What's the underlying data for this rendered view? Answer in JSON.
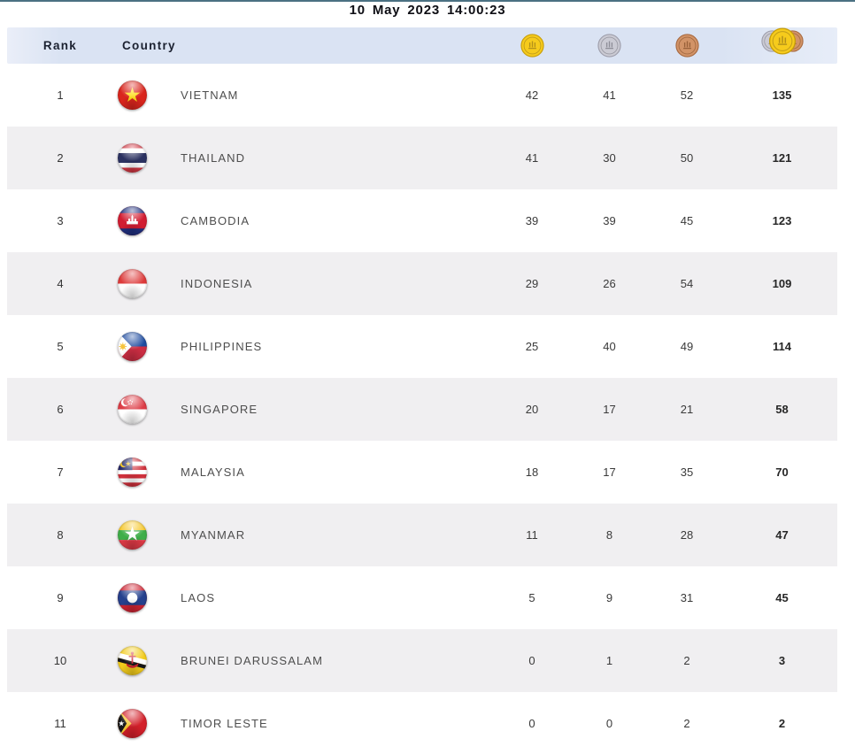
{
  "page": {
    "timestamp": "10 May 2023  14:00:23"
  },
  "table_header": {
    "rank": "Rank",
    "country": "Country",
    "gold_icon": "gold-medal-icon",
    "silver_icon": "silver-medal-icon",
    "bronze_icon": "bronze-medal-icon",
    "total_icon": "total-medals-icon"
  },
  "chart_data": {
    "type": "table",
    "columns": [
      "Rank",
      "Country",
      "Gold",
      "Silver",
      "Bronze",
      "Total"
    ],
    "rows": [
      {
        "rank": 1,
        "country": "VIETNAM",
        "flag": "vietnam",
        "gold": 42,
        "silver": 41,
        "bronze": 52,
        "total": 135
      },
      {
        "rank": 2,
        "country": "THAILAND",
        "flag": "thailand",
        "gold": 41,
        "silver": 30,
        "bronze": 50,
        "total": 121
      },
      {
        "rank": 3,
        "country": "CAMBODIA",
        "flag": "cambodia",
        "gold": 39,
        "silver": 39,
        "bronze": 45,
        "total": 123
      },
      {
        "rank": 4,
        "country": "INDONESIA",
        "flag": "indonesia",
        "gold": 29,
        "silver": 26,
        "bronze": 54,
        "total": 109
      },
      {
        "rank": 5,
        "country": "PHILIPPINES",
        "flag": "philippines",
        "gold": 25,
        "silver": 40,
        "bronze": 49,
        "total": 114
      },
      {
        "rank": 6,
        "country": "SINGAPORE",
        "flag": "singapore",
        "gold": 20,
        "silver": 17,
        "bronze": 21,
        "total": 58
      },
      {
        "rank": 7,
        "country": "MALAYSIA",
        "flag": "malaysia",
        "gold": 18,
        "silver": 17,
        "bronze": 35,
        "total": 70
      },
      {
        "rank": 8,
        "country": "MYANMAR",
        "flag": "myanmar",
        "gold": 11,
        "silver": 8,
        "bronze": 28,
        "total": 47
      },
      {
        "rank": 9,
        "country": "LAOS",
        "flag": "laos",
        "gold": 5,
        "silver": 9,
        "bronze": 31,
        "total": 45
      },
      {
        "rank": 10,
        "country": "BRUNEI DARUSSALAM",
        "flag": "brunei",
        "gold": 0,
        "silver": 1,
        "bronze": 2,
        "total": 3
      },
      {
        "rank": 11,
        "country": "TIMOR LESTE",
        "flag": "timor-leste",
        "gold": 0,
        "silver": 0,
        "bronze": 2,
        "total": 2
      }
    ]
  },
  "colors": {
    "top_line": "#4b7182",
    "header_bg": "#dae3f3",
    "row_alt_bg": "#f0eff1",
    "medal_gold": "#f6cb1c",
    "medal_silver": "#cbcbd4",
    "medal_bronze": "#d29367"
  }
}
